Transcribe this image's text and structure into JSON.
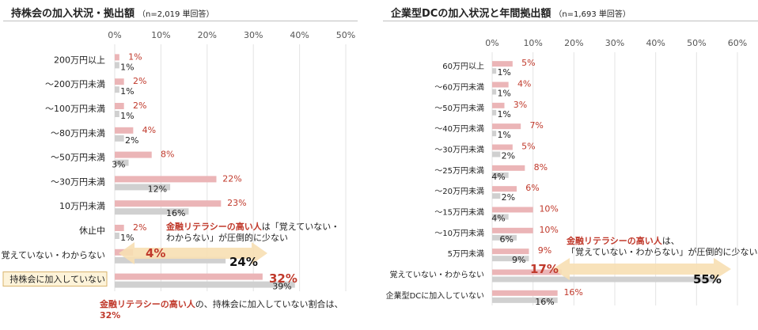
{
  "left": {
    "title": "持株会の加入状況・拠出額",
    "subtitle": "（n=2,019 単回答）",
    "annotation_top_red": "金融リテラシーの高い人",
    "annotation_top_rest1": "は「覚えていない・",
    "annotation_top_rest2": "わからない」が圧倒的に少ない",
    "callout_high": "4%",
    "callout_other": "24%",
    "callout_red_big": "32%",
    "annotation_bottom_red": "金融リテラシーの高い人",
    "annotation_bottom_rest": "の、持株会に加入していない割合は、",
    "annotation_bottom_value": "32%"
  },
  "right": {
    "title": "企業型DCの加入状況と年間拠出額",
    "subtitle": "（n=1,693 単回答）",
    "annotation_red": "金融リテラシーの高い人",
    "annotation_rest1": "は、",
    "annotation_rest2": "「覚えていない・わからない」が圧倒的に少ない",
    "callout_high": "17%",
    "callout_other": "55%"
  },
  "chart_data": [
    {
      "type": "bar",
      "orientation": "horizontal",
      "title": "持株会の加入状況・拠出額",
      "xlim": [
        0,
        50
      ],
      "ticks": [
        "0%",
        "10%",
        "20%",
        "30%",
        "40%",
        "50%"
      ],
      "categories": [
        "200万円以上",
        "～200万円未満",
        "～100万円未満",
        "～80万円未満",
        "～50万円未満",
        "～30万円未満",
        "10万円未満",
        "休止中",
        "覚えていない・わからない",
        "持株会に加入していない"
      ],
      "highlight_category": "持株会に加入していない",
      "series": [
        {
          "color": "#ebb5b7",
          "values": [
            1,
            2,
            2,
            4,
            8,
            22,
            23,
            2,
            4,
            32
          ],
          "labels": [
            "1%",
            "2%",
            "2%",
            "4%",
            "8%",
            "22%",
            "23%",
            "2%",
            "4%",
            "32%"
          ]
        },
        {
          "color": "#d0d0d0",
          "values": [
            1,
            1,
            1,
            2,
            3,
            12,
            16,
            1,
            24,
            39
          ],
          "labels": [
            "1%",
            "1%",
            "1%",
            "2%",
            "3%",
            "12%",
            "16%",
            "1%",
            "24%",
            "39%"
          ]
        }
      ]
    },
    {
      "type": "bar",
      "orientation": "horizontal",
      "title": "企業型DCの加入状況と年間拠出額",
      "xlim": [
        0,
        60
      ],
      "ticks": [
        "0%",
        "10%",
        "20%",
        "30%",
        "40%",
        "50%",
        "60%"
      ],
      "categories": [
        "60万円以上",
        "～60万円未満",
        "～50万円未満",
        "～40万円未満",
        "～30万円未満",
        "～25万円未満",
        "～20万円未満",
        "～15万円未満",
        "～10万円未満",
        "5万円未満",
        "覚えていない・わからない",
        "企業型DCに加入していない"
      ],
      "series": [
        {
          "color": "#ebb5b7",
          "values": [
            5,
            4,
            3,
            7,
            5,
            8,
            6,
            10,
            10,
            9,
            17,
            16
          ],
          "labels": [
            "5%",
            "4%",
            "3%",
            "7%",
            "5%",
            "8%",
            "6%",
            "10%",
            "10%",
            "9%",
            "17%",
            "16%"
          ]
        },
        {
          "color": "#d0d0d0",
          "values": [
            1,
            1,
            1,
            1,
            2,
            4,
            2,
            4,
            6,
            9,
            55,
            16
          ],
          "labels": [
            "1%",
            "1%",
            "1%",
            "1%",
            "2%",
            "4%",
            "2%",
            "4%",
            "6%",
            "9%",
            "55%",
            "16%"
          ]
        }
      ]
    }
  ]
}
